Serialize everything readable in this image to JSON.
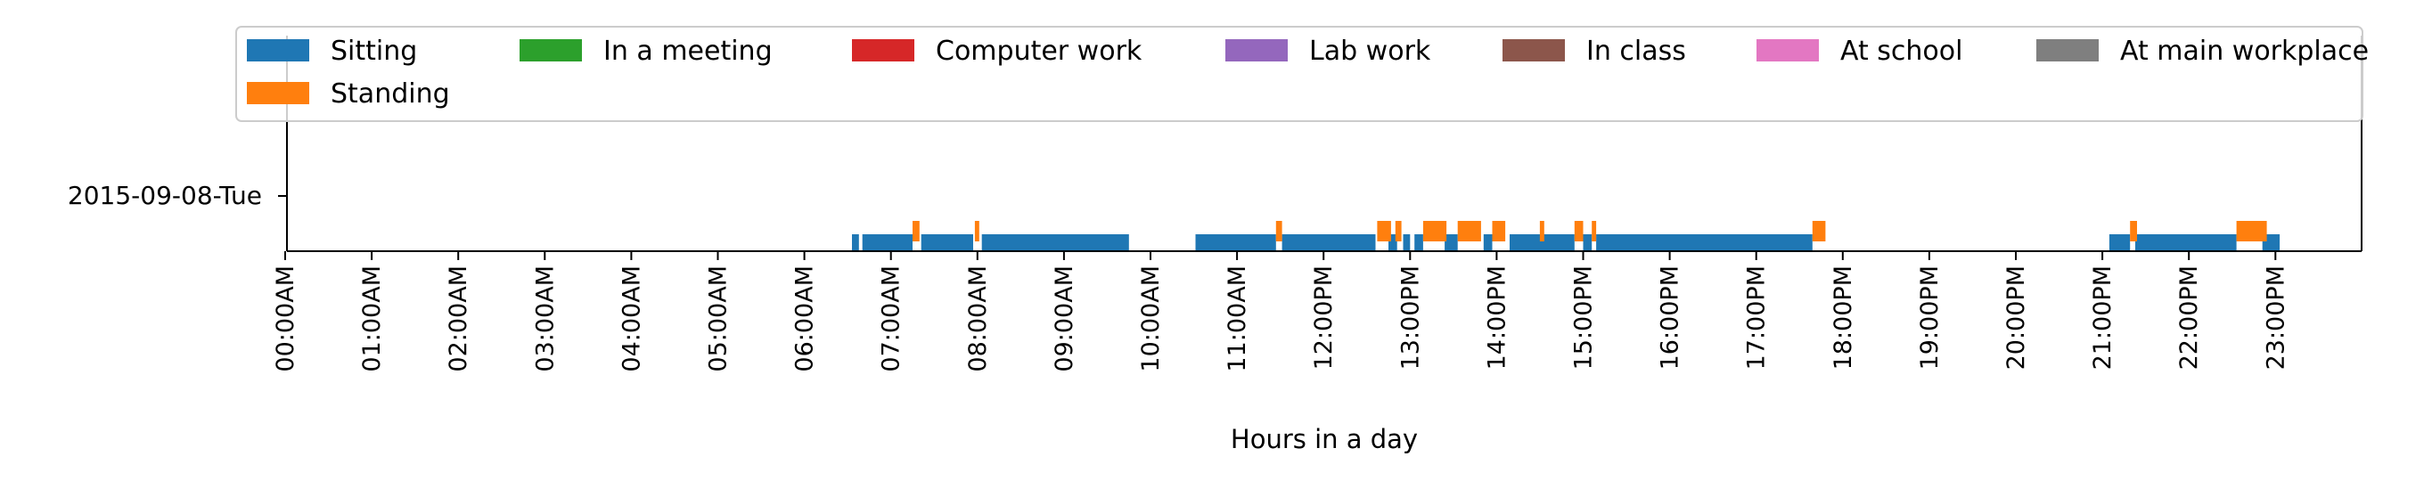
{
  "chart_data": {
    "type": "timeline",
    "title": "",
    "xlabel": "Hours in a day",
    "ylabel": "",
    "xlim": [
      0,
      24
    ],
    "row_label": "2015-09-08-Tue",
    "x_tick_labels": [
      "00:00AM",
      "01:00AM",
      "02:00AM",
      "03:00AM",
      "04:00AM",
      "05:00AM",
      "06:00AM",
      "07:00AM",
      "08:00AM",
      "09:00AM",
      "10:00AM",
      "11:00AM",
      "12:00PM",
      "13:00PM",
      "14:00PM",
      "15:00PM",
      "16:00PM",
      "17:00PM",
      "18:00PM",
      "19:00PM",
      "20:00PM",
      "21:00PM",
      "22:00PM",
      "23:00PM"
    ],
    "legend_position": "top",
    "series": [
      {
        "name": "Sitting",
        "color": "#1f77b4",
        "intervals": [
          [
            6.55,
            6.63
          ],
          [
            6.67,
            7.25
          ],
          [
            7.35,
            7.95
          ],
          [
            8.05,
            9.75
          ],
          [
            10.52,
            11.45
          ],
          [
            11.52,
            12.6
          ],
          [
            12.75,
            12.85
          ],
          [
            12.92,
            13.0
          ],
          [
            13.05,
            13.15
          ],
          [
            13.4,
            13.55
          ],
          [
            13.85,
            13.95
          ],
          [
            14.15,
            14.9
          ],
          [
            15.0,
            15.1
          ],
          [
            15.15,
            17.65
          ],
          [
            21.08,
            21.32
          ],
          [
            21.38,
            22.55
          ],
          [
            22.85,
            23.05
          ]
        ]
      },
      {
        "name": "Standing",
        "color": "#ff7f0e",
        "intervals": [
          [
            7.25,
            7.33
          ],
          [
            7.97,
            8.02
          ],
          [
            11.45,
            11.52
          ],
          [
            12.62,
            12.78
          ],
          [
            12.83,
            12.9
          ],
          [
            13.15,
            13.42
          ],
          [
            13.55,
            13.82
          ],
          [
            13.95,
            14.1
          ],
          [
            14.5,
            14.55
          ],
          [
            14.9,
            15.0
          ],
          [
            15.1,
            15.15
          ],
          [
            17.65,
            17.8
          ],
          [
            21.32,
            21.4
          ],
          [
            22.55,
            22.9
          ]
        ]
      },
      {
        "name": "In a meeting",
        "color": "#2ca02c",
        "intervals": []
      },
      {
        "name": "Computer work",
        "color": "#d62728",
        "intervals": []
      },
      {
        "name": "Lab work",
        "color": "#9467bd",
        "intervals": []
      },
      {
        "name": "In class",
        "color": "#8c564b",
        "intervals": []
      },
      {
        "name": "At school",
        "color": "#e377c2",
        "intervals": []
      },
      {
        "name": "At main workplace",
        "color": "#7f7f7f",
        "intervals": []
      }
    ]
  }
}
